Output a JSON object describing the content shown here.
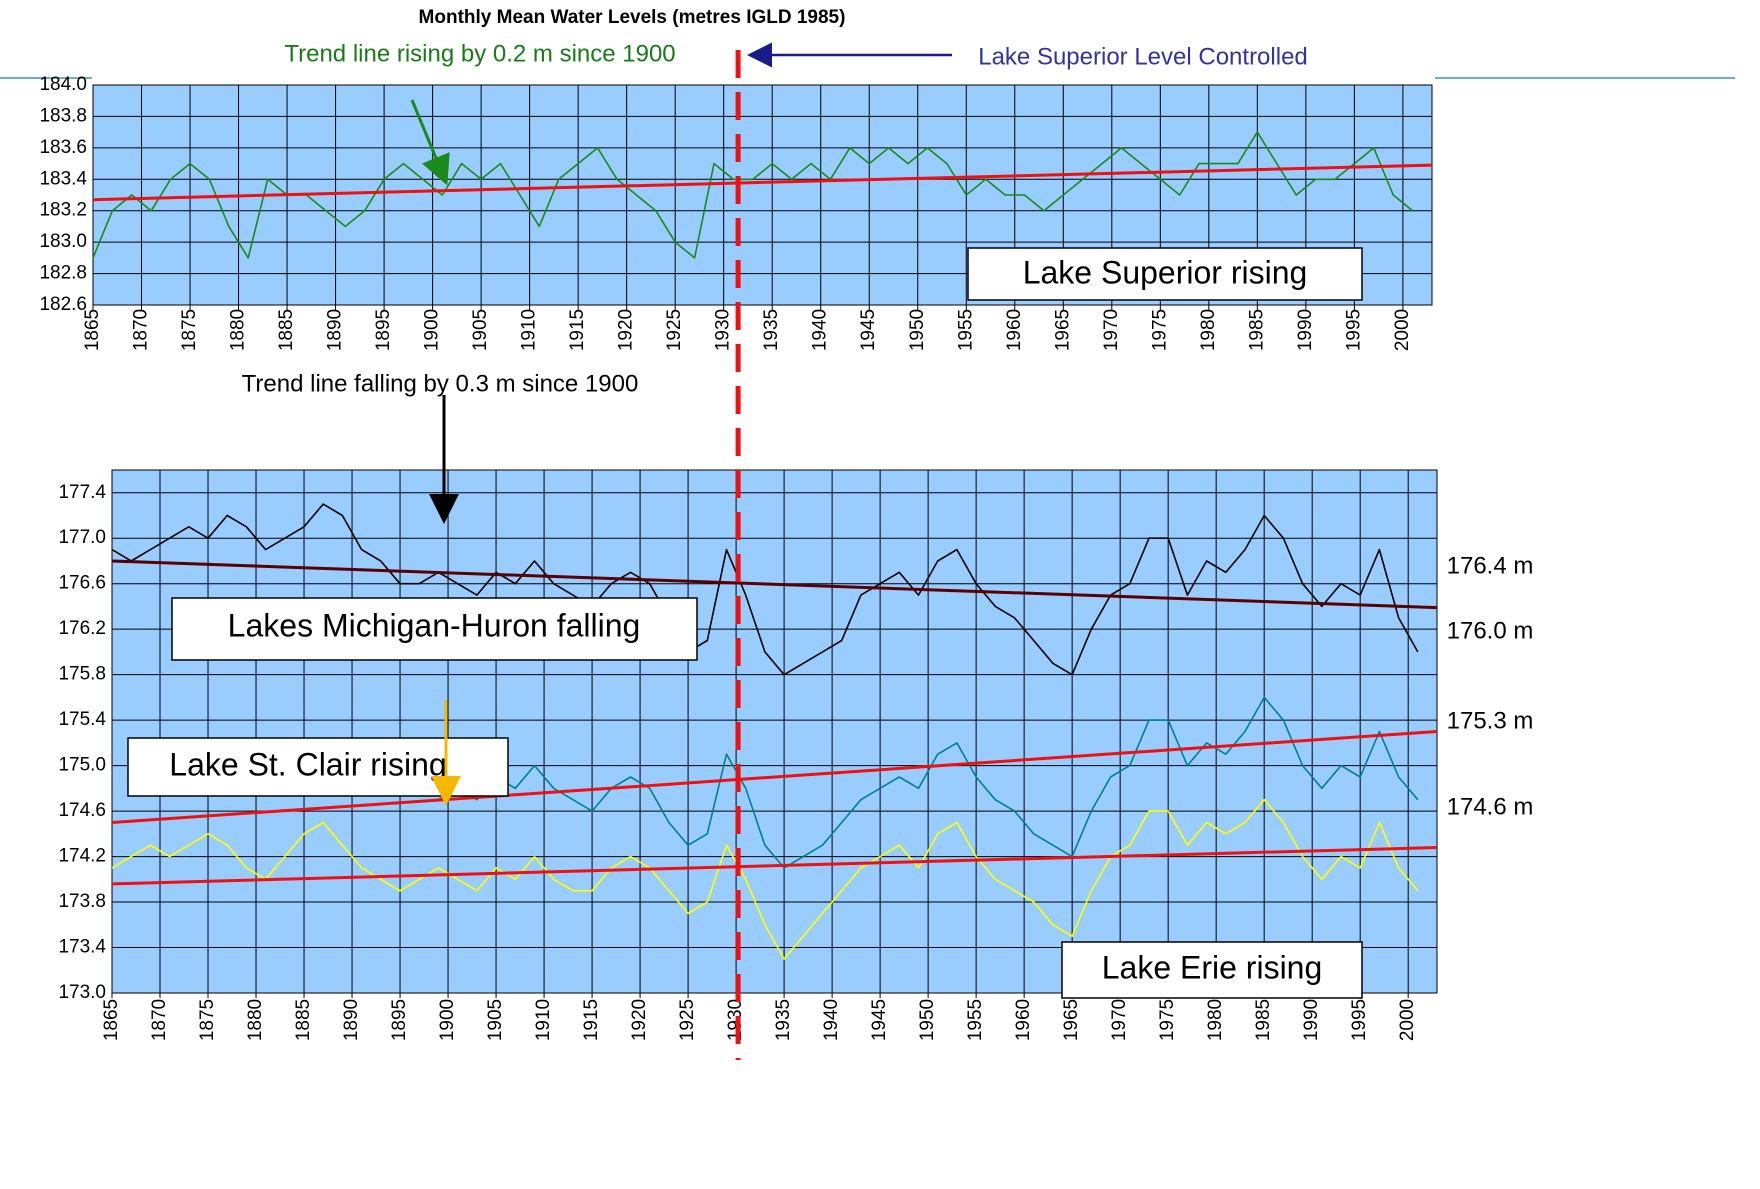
{
  "chart_data": [
    {
      "type": "line",
      "title": "Monthly Mean Water Levels  (metres IGLD 1985)",
      "xlim": [
        1865,
        2003
      ],
      "ylim": [
        182.6,
        184.0
      ],
      "xticks": [
        1865,
        1870,
        1875,
        1880,
        1885,
        1890,
        1895,
        1900,
        1905,
        1910,
        1915,
        1920,
        1925,
        1930,
        1935,
        1940,
        1945,
        1950,
        1955,
        1960,
        1965,
        1970,
        1975,
        1980,
        1985,
        1990,
        1995,
        2000
      ],
      "yticks": [
        182.6,
        182.8,
        {
          "value": 183,
          "label": "183.0"
        },
        183.2,
        183.4,
        183.6,
        183.8,
        {
          "value": 184,
          "label": "184.0"
        }
      ],
      "grid": true,
      "control_year": 1932,
      "x": [
        1865,
        1867,
        1869,
        1871,
        1873,
        1875,
        1877,
        1879,
        1881,
        1883,
        1885,
        1887,
        1889,
        1891,
        1893,
        1895,
        1897,
        1899,
        1901,
        1903,
        1905,
        1907,
        1909,
        1911,
        1913,
        1915,
        1917,
        1919,
        1921,
        1923,
        1925,
        1927,
        1929,
        1931,
        1933,
        1935,
        1937,
        1939,
        1941,
        1943,
        1945,
        1947,
        1949,
        1951,
        1953,
        1955,
        1957,
        1959,
        1961,
        1963,
        1965,
        1967,
        1969,
        1971,
        1973,
        1975,
        1977,
        1979,
        1981,
        1983,
        1985,
        1987,
        1989,
        1991,
        1993,
        1995,
        1997,
        1999,
        2001
      ],
      "series": [
        {
          "color": "#1a8a1a",
          "values": [
            182.9,
            183.2,
            183.3,
            183.2,
            183.4,
            183.5,
            183.4,
            183.1,
            182.9,
            183.4,
            183.3,
            183.3,
            183.2,
            183.1,
            183.2,
            183.4,
            183.5,
            183.4,
            183.3,
            183.5,
            183.4,
            183.5,
            183.3,
            183.1,
            183.4,
            183.5,
            183.6,
            183.4,
            183.3,
            183.2,
            183.0,
            182.9,
            183.5,
            183.4,
            183.4,
            183.5,
            183.4,
            183.5,
            183.4,
            183.6,
            183.5,
            183.6,
            183.5,
            183.6,
            183.5,
            183.3,
            183.4,
            183.3,
            183.3,
            183.2,
            183.3,
            183.4,
            183.5,
            183.6,
            183.5,
            183.4,
            183.3,
            183.5,
            183.5,
            183.5,
            183.7,
            183.5,
            183.3,
            183.4,
            183.4,
            183.5,
            183.6,
            183.3,
            183.2
          ]
        },
        {
          "color": "#ee1111",
          "x": [
            1865,
            2003
          ],
          "values": [
            183.27,
            183.49
          ]
        }
      ],
      "annotations": [
        {
          "text": "Trend line rising by 0.2 m since 1900",
          "color": "#1a7a1a"
        },
        {
          "text": "Lake Superior Level Controlled",
          "color": "#333399"
        },
        {
          "text": "Lake Superior rising",
          "color": "#000000"
        }
      ]
    },
    {
      "type": "line",
      "xlim": [
        1865,
        2003
      ],
      "ylim": [
        173.0,
        177.6
      ],
      "xticks": [
        1865,
        1870,
        1875,
        1880,
        1885,
        1890,
        1895,
        1900,
        1905,
        1910,
        1915,
        1920,
        1925,
        1930,
        1935,
        1940,
        1945,
        1950,
        1955,
        1960,
        1965,
        1970,
        1975,
        1980,
        1985,
        1990,
        1995,
        2000
      ],
      "yticks": [
        {
          "value": 173,
          "label": "173.0"
        },
        173.4,
        173.8,
        174.2,
        174.6,
        {
          "value": 175,
          "label": "175.0"
        },
        175.4,
        175.8,
        176.2,
        176.6,
        {
          "value": 177,
          "label": "177.0"
        },
        177.4
      ],
      "grid": true,
      "x": [
        1865,
        1867,
        1869,
        1871,
        1873,
        1875,
        1877,
        1879,
        1881,
        1883,
        1885,
        1887,
        1889,
        1891,
        1893,
        1895,
        1897,
        1899,
        1901,
        1903,
        1905,
        1907,
        1909,
        1911,
        1913,
        1915,
        1917,
        1919,
        1921,
        1923,
        1925,
        1927,
        1929,
        1931,
        1933,
        1935,
        1937,
        1939,
        1941,
        1943,
        1945,
        1947,
        1949,
        1951,
        1953,
        1955,
        1957,
        1959,
        1961,
        1963,
        1965,
        1967,
        1969,
        1971,
        1973,
        1975,
        1977,
        1979,
        1981,
        1983,
        1985,
        1987,
        1989,
        1991,
        1993,
        1995,
        1997,
        1999,
        2001
      ],
      "series": [
        {
          "color": "#000000",
          "values": [
            176.9,
            176.8,
            176.9,
            177.0,
            177.1,
            177.0,
            177.2,
            177.1,
            176.9,
            177.0,
            177.1,
            177.3,
            177.2,
            176.9,
            176.8,
            176.6,
            176.6,
            176.7,
            176.6,
            176.5,
            176.7,
            176.6,
            176.8,
            176.6,
            176.5,
            176.4,
            176.6,
            176.7,
            176.6,
            176.3,
            176.0,
            176.1,
            176.9,
            176.5,
            176.0,
            175.8,
            175.9,
            176.0,
            176.1,
            176.5,
            176.6,
            176.7,
            176.5,
            176.8,
            176.9,
            176.6,
            176.4,
            176.3,
            176.1,
            175.9,
            175.8,
            176.2,
            176.5,
            176.6,
            177.0,
            177.0,
            176.5,
            176.8,
            176.7,
            176.9,
            177.2,
            177.0,
            176.6,
            176.4,
            176.6,
            176.5,
            176.9,
            176.3,
            176.0
          ]
        },
        {
          "color": "#00808a",
          "values": [
            null,
            null,
            null,
            null,
            null,
            null,
            null,
            null,
            null,
            null,
            null,
            null,
            null,
            null,
            null,
            null,
            null,
            174.7,
            174.8,
            174.7,
            174.9,
            174.8,
            175.0,
            174.8,
            174.7,
            174.6,
            174.8,
            174.9,
            174.8,
            174.5,
            174.3,
            174.4,
            175.1,
            174.8,
            174.3,
            174.1,
            174.2,
            174.3,
            174.5,
            174.7,
            174.8,
            174.9,
            174.8,
            175.1,
            175.2,
            174.9,
            174.7,
            174.6,
            174.4,
            174.3,
            174.2,
            174.6,
            174.9,
            175.0,
            175.4,
            175.4,
            175.0,
            175.2,
            175.1,
            175.3,
            175.6,
            175.4,
            175.0,
            174.8,
            175.0,
            174.9,
            175.3,
            174.9,
            174.7
          ]
        },
        {
          "color": "#ffff00",
          "values": [
            174.1,
            174.2,
            174.3,
            174.2,
            174.3,
            174.4,
            174.3,
            174.1,
            174.0,
            174.2,
            174.4,
            174.5,
            174.3,
            174.1,
            174.0,
            173.9,
            174.0,
            174.1,
            174.0,
            173.9,
            174.1,
            174.0,
            174.2,
            174.0,
            173.9,
            173.9,
            174.1,
            174.2,
            174.1,
            173.9,
            173.7,
            173.8,
            174.3,
            174.0,
            173.6,
            173.3,
            173.5,
            173.7,
            173.9,
            174.1,
            174.2,
            174.3,
            174.1,
            174.4,
            174.5,
            174.2,
            174.0,
            173.9,
            173.8,
            173.6,
            173.5,
            173.9,
            174.2,
            174.3,
            174.6,
            174.6,
            174.3,
            174.5,
            174.4,
            174.5,
            174.7,
            174.5,
            174.2,
            174.0,
            174.2,
            174.1,
            174.5,
            174.1,
            173.9
          ]
        },
        {
          "color": "#5a0000",
          "x": [
            1865,
            2003
          ],
          "values": [
            176.8,
            176.39
          ]
        },
        {
          "color": "#ee1111",
          "x": [
            1865,
            2003
          ],
          "values": [
            174.5,
            175.3
          ]
        },
        {
          "color": "#ee1111",
          "x": [
            1865,
            2003
          ],
          "values": [
            173.96,
            174.28
          ]
        }
      ],
      "annotations": [
        {
          "text": "Trend line falling by 0.3 m since 1900",
          "color": "#000000"
        },
        {
          "text": "Lakes Michigan-Huron falling",
          "color": "#000000"
        },
        {
          "text": "Lake St. Clair rising",
          "color": "#000000"
        },
        {
          "text": "Lake Erie rising",
          "color": "#000000"
        },
        {
          "text": "176.4 m",
          "color": "#000000"
        },
        {
          "text": "176.0 m",
          "color": "#000000"
        },
        {
          "text": "175.3 m",
          "color": "#000000"
        },
        {
          "text": "174.6 m",
          "color": "#000000"
        }
      ]
    }
  ]
}
